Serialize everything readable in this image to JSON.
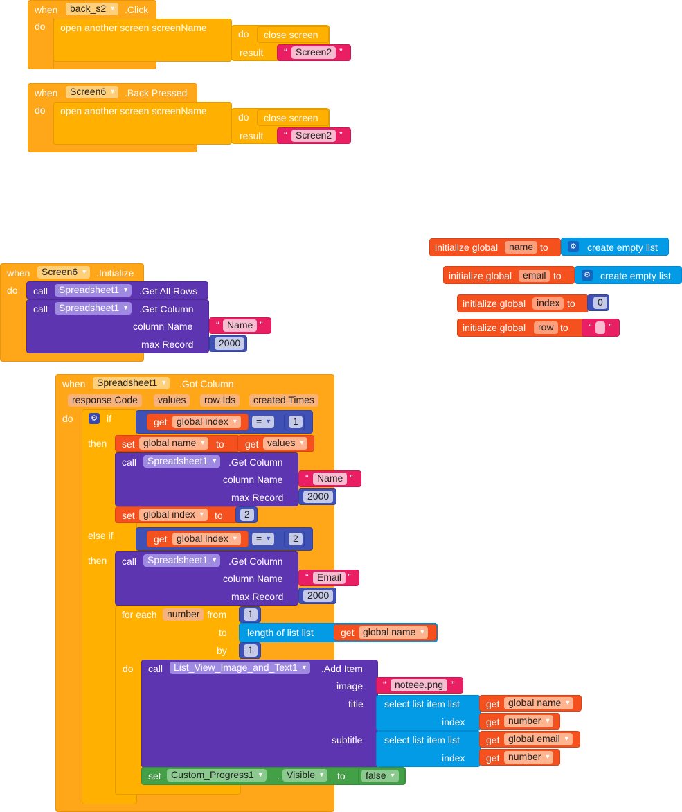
{
  "blocks": {
    "back_click": {
      "when": "when",
      "component": "back_s2",
      "event": ".Click",
      "do": "do",
      "call": "open another screen  screenName",
      "inner_do": "do",
      "close": "close screen",
      "result": "result",
      "screen": "Screen2"
    },
    "back_pressed": {
      "when": "when",
      "component": "Screen6",
      "event": ".Back Pressed",
      "do": "do",
      "call": "open another screen  screenName",
      "inner_do": "do",
      "close": "close screen",
      "result": "result",
      "screen": "Screen2"
    },
    "globals": [
      {
        "label": "initialize global",
        "var": "name",
        "to": "to",
        "value": "create empty list"
      },
      {
        "label": "initialize global",
        "var": "email",
        "to": "to",
        "value": "create empty list"
      },
      {
        "label": "initialize global",
        "var": "index",
        "to": "to",
        "value": "0"
      },
      {
        "label": "initialize global",
        "var": "row",
        "to": "to",
        "value": ""
      }
    ],
    "initialize": {
      "when": "when",
      "component": "Screen6",
      "event": ".Initialize",
      "do": "do",
      "call1": "call",
      "comp1": "Spreadsheet1",
      "method1": ".Get All Rows",
      "call2": "call",
      "comp2": "Spreadsheet1",
      "method2": ".Get Column",
      "column_name": "column Name",
      "name_val": "Name",
      "max_record": "max Record",
      "max_val": "2000"
    },
    "got_column": {
      "when": "when",
      "component": "Spreadsheet1",
      "event": ".Got Column",
      "params": [
        "response Code",
        "values",
        "row Ids",
        "created Times"
      ],
      "do": "do",
      "if": "if",
      "get": "get",
      "global_index": "global index",
      "eq": "=",
      "one": "1",
      "then": "then",
      "set": "set",
      "global_name": "global name",
      "to": "to",
      "values": "values",
      "call": "call",
      "sheet": "Spreadsheet1",
      "get_column": ".Get Column",
      "column_name": "column Name",
      "name_val": "Name",
      "max_record": "max Record",
      "max_val": "2000",
      "two": "2",
      "else_if": "else if",
      "email_val": "Email",
      "for_each": "for each",
      "number": "number",
      "from": "from",
      "to_kw": "to",
      "by": "by",
      "length_of_list": "length of list  list",
      "lv_comp": "List_View_Image_and_Text1",
      "add_item": ".Add Item",
      "image": "image",
      "image_val": "noteee.png",
      "title": "title",
      "select_item": "select list item  list",
      "index": "index",
      "subtitle": "subtitle",
      "global_email": "global email",
      "progress_comp": "Custom_Progress1",
      "dot": ".",
      "visible": "Visible",
      "false": "false"
    }
  }
}
